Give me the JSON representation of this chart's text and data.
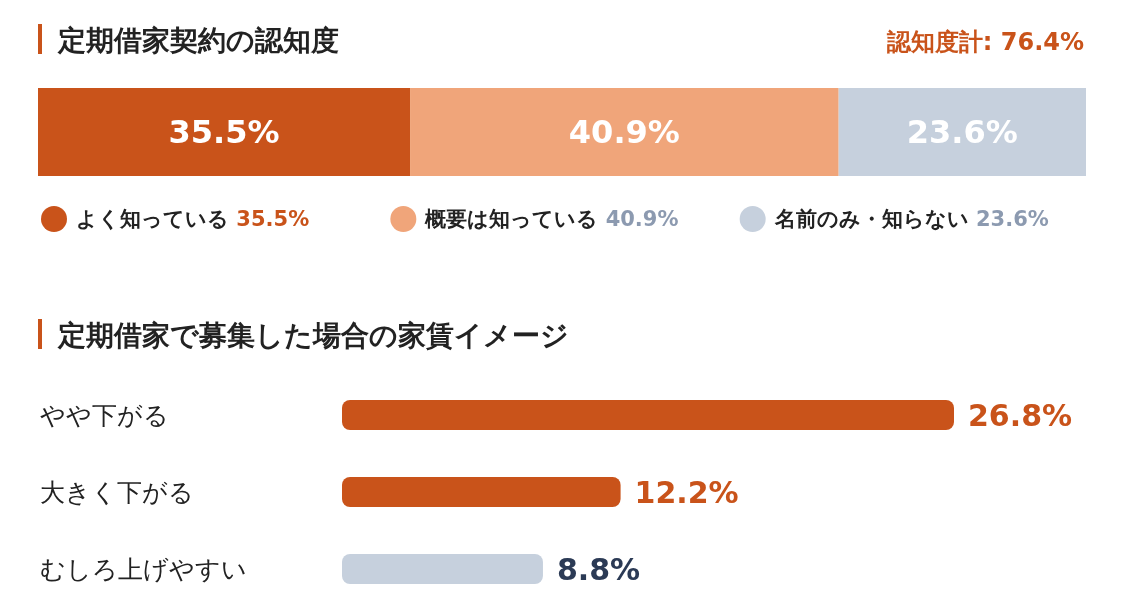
{
  "chart_data": [
    {
      "type": "bar",
      "orientation": "horizontal",
      "stacked": true,
      "title": "定期借家契約の認知度",
      "annotations": [
        "認知度計: 76.4%"
      ],
      "categories": [
        null
      ],
      "legend": "bottom",
      "series": [
        {
          "name": "よく知っている",
          "color": "#c9531a",
          "values": [
            35.5
          ],
          "value_labels": [
            "35.5%"
          ]
        },
        {
          "name": "概要は知っている",
          "color": "#f0a57a",
          "values": [
            40.9
          ],
          "value_labels": [
            "40.9%"
          ]
        },
        {
          "name": "名前のみ・知らない",
          "color": "#c6d0dd",
          "values": [
            23.6
          ],
          "value_labels": [
            "23.6%"
          ]
        }
      ]
    },
    {
      "type": "bar",
      "orientation": "horizontal",
      "title": "定期借家で募集した場合の家賃イメージ",
      "categories": [
        "やや下がる",
        "大きく下がる",
        "むしろ上げやすい"
      ],
      "values": [
        26.8,
        12.2,
        8.8
      ],
      "value_labels": [
        "26.8%",
        "12.2%",
        "8.8%"
      ],
      "colors": [
        "#c9531a",
        "#c9531a",
        "#c6d0dd"
      ]
    }
  ]
}
